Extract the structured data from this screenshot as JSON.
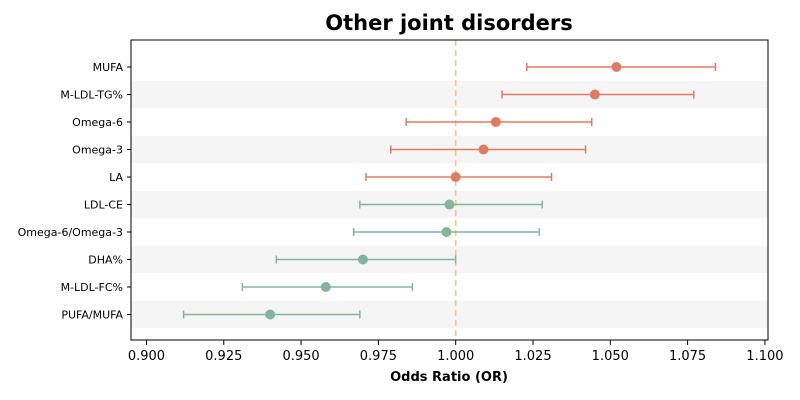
{
  "chart_data": {
    "type": "forest",
    "title": "Other joint disorders",
    "xlabel": "Odds Ratio (OR)",
    "ylabel": "",
    "xlim": [
      0.895,
      1.101
    ],
    "xticks": [
      "0.900",
      "0.925",
      "0.950",
      "0.975",
      "1.000",
      "1.025",
      "1.050",
      "1.075",
      "1.100"
    ],
    "reference_line": 1.0,
    "grid": false,
    "row_banding": true,
    "colors": {
      "positive": "#e07b62",
      "negative": "#82b69b",
      "reference": "#f0c987",
      "band": "#f5f5f5"
    },
    "rows": [
      {
        "label": "MUFA",
        "or": 1.052,
        "lower": 1.023,
        "upper": 1.084
      },
      {
        "label": "M-LDL-TG%",
        "or": 1.045,
        "lower": 1.015,
        "upper": 1.077
      },
      {
        "label": "Omega-6",
        "or": 1.013,
        "lower": 0.984,
        "upper": 1.044
      },
      {
        "label": "Omega-3",
        "or": 1.009,
        "lower": 0.979,
        "upper": 1.042
      },
      {
        "label": "LA",
        "or": 1.0,
        "lower": 0.971,
        "upper": 1.031
      },
      {
        "label": "LDL-CE",
        "or": 0.998,
        "lower": 0.969,
        "upper": 1.028
      },
      {
        "label": "Omega-6/Omega-3",
        "or": 0.997,
        "lower": 0.967,
        "upper": 1.027
      },
      {
        "label": "DHA%",
        "or": 0.97,
        "lower": 0.942,
        "upper": 1.0
      },
      {
        "label": "M-LDL-FC%",
        "or": 0.958,
        "lower": 0.931,
        "upper": 0.986
      },
      {
        "label": "PUFA/MUFA",
        "or": 0.94,
        "lower": 0.912,
        "upper": 0.969
      }
    ]
  }
}
